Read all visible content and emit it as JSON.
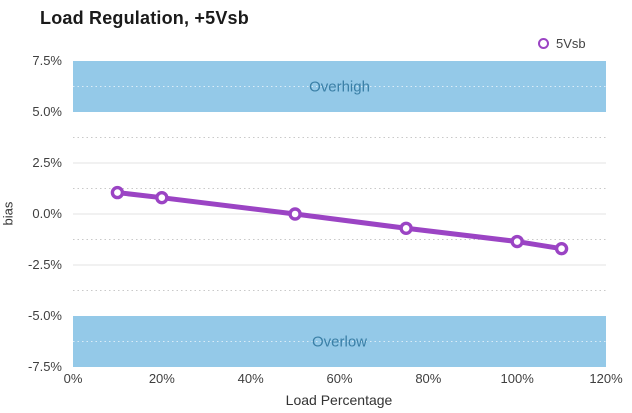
{
  "header": {
    "title": "Load Regulation, +5Vsb"
  },
  "legend": {
    "items": [
      {
        "label": "5Vsb",
        "marker": "ring-icon"
      }
    ]
  },
  "colors": {
    "line": "#9B44C4",
    "marker_fill": "#ffffff",
    "band": "#94C9E8",
    "band_text": "#3A7FA6",
    "grid_major": "#e3e3e3",
    "grid_minor": "#c9c9c9",
    "grid_minor_on_band": "rgba(255,255,255,0.65)",
    "tick_text": "#3f3f3f",
    "title_text": "#1a1a1a"
  },
  "chart_data": {
    "type": "line",
    "title": "Load Regulation, +5Vsb",
    "xlabel": "Load Percentage",
    "ylabel": "bias",
    "x": [
      10,
      20,
      50,
      75,
      100,
      110
    ],
    "series": [
      {
        "name": "5Vsb",
        "values": [
          1.05,
          0.8,
          0.0,
          -0.7,
          -1.35,
          -1.7
        ]
      }
    ],
    "xlim": [
      0,
      120
    ],
    "ylim": [
      -7.5,
      7.5
    ],
    "x_ticks": {
      "values": [
        0,
        20,
        40,
        60,
        80,
        100,
        120
      ],
      "labels": [
        "0%",
        "20%",
        "40%",
        "60%",
        "80%",
        "100%",
        "120%"
      ]
    },
    "y_ticks": {
      "values": [
        7.5,
        5.0,
        2.5,
        0.0,
        -2.5,
        -5.0,
        -7.5
      ],
      "labels": [
        "7.5%",
        "5.0%",
        "2.5%",
        "0.0%",
        "-2.5%",
        "-5.0%",
        "-7.5%"
      ]
    },
    "major_gridlines": [
      2.5,
      0.0,
      -2.5
    ],
    "minor_gridlines": [
      3.75,
      1.25,
      -1.25,
      -3.75
    ],
    "band_minor_gridlines": [
      6.25,
      -6.25
    ],
    "bands": [
      {
        "label": "Overhigh",
        "from": 5.0,
        "to": 7.5
      },
      {
        "label": "Overlow",
        "from": -7.5,
        "to": -5.0
      }
    ],
    "grid": true,
    "legend_position": "top-right"
  }
}
